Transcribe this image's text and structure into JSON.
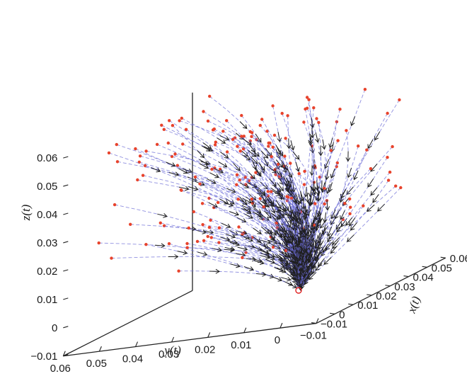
{
  "chart_data": {
    "type": "line",
    "plot": "3d-phase-portrait",
    "title": "",
    "xlabel": "x(t)",
    "ylabel": "y(t)",
    "zlabel": "z(t)",
    "xlim": [
      -0.01,
      0.06
    ],
    "ylim": [
      -0.01,
      0.06
    ],
    "zlim": [
      -0.01,
      0.06
    ],
    "x_ticks": [
      "−0.01",
      "0",
      "0.01",
      "0.02",
      "0.03",
      "0.04",
      "0.05",
      "0.06"
    ],
    "y_ticks": [
      "0.06",
      "0.05",
      "0.04",
      "0.03",
      "0.02",
      "0.01",
      "0",
      "−0.01"
    ],
    "z_ticks": [
      "0.06",
      "0.05",
      "0.04",
      "0.03",
      "0.02",
      "0.01",
      "0",
      "−0.01"
    ],
    "equilibrium": {
      "x": 0,
      "y": 0,
      "z": 0
    },
    "trajectories": {
      "count": 180,
      "initial_conditions_range": [
        0,
        0.06
      ],
      "converge_to": "origin"
    },
    "colors": {
      "trajectory": "#6b6bd6",
      "arrow": "#1f1f1f",
      "initial_point": "#e8432c",
      "equilibrium_marker": "#e02020"
    },
    "grid": false,
    "legend": "none"
  }
}
